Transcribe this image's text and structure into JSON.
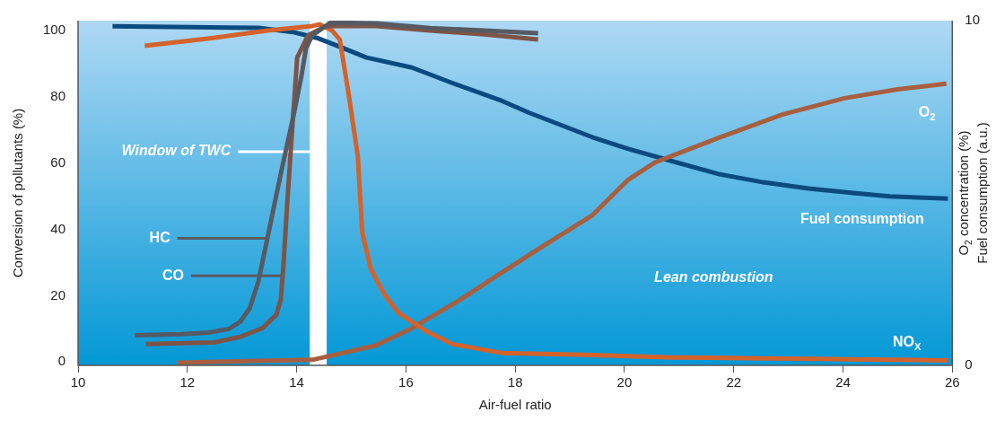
{
  "chart_data": {
    "type": "line",
    "xlabel": "Air-fuel ratio",
    "ylabel": "Conversion of pollutants (%)",
    "y2label": "O$_{2}$ concentration (%)\nFuel consumption (a.u.)",
    "xlim": [
      10,
      26
    ],
    "xticks": [
      10,
      12,
      14,
      16,
      18,
      20,
      22,
      24,
      26
    ],
    "ylim": [
      -1,
      103
    ],
    "yticks": [
      0,
      20,
      40,
      60,
      80,
      100
    ],
    "y2lim": [
      0,
      10
    ],
    "y2ticks": [
      0,
      10
    ],
    "legend": false,
    "marker": "none",
    "line_style": "solid",
    "series": [
      {
        "color": "#565a63",
        "x": [
          11.04,
          11.9,
          12.39,
          12.76,
          12.97,
          13.14,
          13.3,
          13.47,
          13.71,
          13.96,
          14.09,
          14.17,
          14.29,
          14.62,
          15.45,
          16.44,
          17.43,
          18.42
        ],
        "values": [
          8.1,
          8.4,
          8.9,
          10,
          12.2,
          16.2,
          24.3,
          37.8,
          56.8,
          75.7,
          86.5,
          94.6,
          98.6,
          102.4,
          102.2,
          100.8,
          100,
          99.2
        ]
      },
      {
        "color": "#7d5446",
        "x": [
          11.24,
          12.48,
          12.97,
          13.38,
          13.63,
          13.71,
          13.76,
          13.83,
          13.93,
          14.01,
          14.21,
          14.54,
          15.45,
          16.44,
          17.43,
          18.42
        ],
        "values": [
          5.4,
          5.9,
          7.6,
          10.3,
          14.3,
          18.9,
          29.7,
          48.6,
          73,
          91.9,
          98.6,
          101.4,
          101.4,
          100,
          98.9,
          97.3
        ]
      },
      {
        "name": "NO$_{X}$",
        "color": "#d4622b",
        "x": [
          11.22,
          12.48,
          13.47,
          14.29,
          14.42,
          14.65,
          14.79,
          14.95,
          15.12,
          15.2,
          15.36,
          15.61,
          15.86,
          16.35,
          16.85,
          17.76,
          19.24,
          20.89,
          25.92
        ],
        "values": [
          95.4,
          97.8,
          100,
          101.4,
          101.9,
          100,
          97.3,
          81,
          62,
          39,
          28,
          20.3,
          14.9,
          9.5,
          5.4,
          2.7,
          2.2,
          1.4,
          0.5
        ]
      },
      {
        "name": "O$_{2}$",
        "color": "#a85f3f",
        "axis": "y2",
        "x": [
          11.82,
          14.29,
          15.45,
          16.1,
          17,
          17.76,
          18.58,
          19.41,
          20.07,
          20.56,
          21.72,
          22.9,
          24.03,
          25,
          25.89
        ],
        "values": [
          0.08,
          0.16,
          0.58,
          1.07,
          1.91,
          2.7,
          3.53,
          4.35,
          5.39,
          5.89,
          6.6,
          7.28,
          7.75,
          8.01,
          8.17
        ]
      },
      {
        "name": "Fuel consumption",
        "color": "#0a4a7e",
        "axis": "y2",
        "x": [
          10.63,
          13.3,
          13.96,
          14.37,
          14.79,
          15.28,
          16.11,
          16.85,
          17.76,
          18.25,
          19.41,
          20.07,
          21.06,
          21.72,
          22.54,
          23.37,
          24.19,
          24.85,
          25.92
        ],
        "values": [
          9.84,
          9.79,
          9.66,
          9.5,
          9.24,
          8.93,
          8.64,
          8.19,
          7.67,
          7.33,
          6.62,
          6.28,
          5.84,
          5.55,
          5.31,
          5.13,
          5,
          4.9,
          4.84
        ]
      }
    ],
    "bands": [
      {
        "axis": "x",
        "from": 14.24,
        "to": 14.55,
        "label": "Window of TWC",
        "color": "#ffffff"
      }
    ],
    "annotations": [
      {
        "text": "HC",
        "x": 13.46,
        "y": 37.3
      },
      {
        "text": "CO",
        "x": 13.71,
        "y": 26
      },
      "Lean combustion"
    ]
  }
}
